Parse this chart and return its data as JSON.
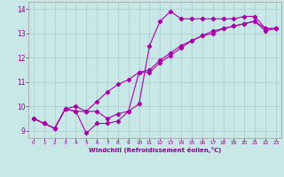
{
  "xlabel": "Windchill (Refroidissement éolien,°C)",
  "background_color": "#c8e8e8",
  "grid_color": "#b0d0d0",
  "line_color": "#aa00aa",
  "xlim": [
    -0.5,
    23.5
  ],
  "ylim": [
    8.7,
    14.3
  ],
  "xticks": [
    0,
    1,
    2,
    3,
    4,
    5,
    6,
    7,
    8,
    9,
    10,
    11,
    12,
    13,
    14,
    15,
    16,
    17,
    18,
    19,
    20,
    21,
    22,
    23
  ],
  "yticks": [
    9,
    10,
    11,
    12,
    13,
    14
  ],
  "line1_x": [
    0,
    1,
    2,
    3,
    4,
    5,
    6,
    7,
    8,
    9,
    10,
    11,
    12,
    13,
    14,
    15,
    16,
    17,
    18,
    19,
    20,
    21,
    22,
    23
  ],
  "line1_y": [
    9.5,
    9.3,
    9.1,
    9.9,
    9.8,
    8.9,
    9.3,
    9.3,
    9.4,
    9.8,
    10.1,
    12.5,
    13.5,
    13.9,
    13.6,
    13.6,
    13.6,
    13.6,
    13.6,
    13.6,
    13.7,
    13.7,
    13.2,
    13.2
  ],
  "line2_x": [
    0,
    1,
    2,
    3,
    4,
    5,
    6,
    7,
    8,
    9,
    10,
    11,
    12,
    13,
    14,
    15,
    16,
    17,
    18,
    19,
    20,
    21,
    22,
    23
  ],
  "line2_y": [
    9.5,
    9.3,
    9.1,
    9.9,
    10.0,
    9.8,
    10.2,
    10.6,
    10.9,
    11.1,
    11.4,
    11.5,
    11.9,
    12.2,
    12.5,
    12.7,
    12.9,
    13.1,
    13.2,
    13.3,
    13.4,
    13.5,
    13.2,
    13.2
  ],
  "line3_x": [
    0,
    1,
    2,
    3,
    4,
    5,
    6,
    7,
    8,
    9,
    10,
    11,
    12,
    13,
    14,
    15,
    16,
    17,
    18,
    19,
    20,
    21,
    22,
    23
  ],
  "line3_y": [
    9.5,
    9.3,
    9.1,
    9.9,
    9.8,
    9.8,
    9.8,
    9.5,
    9.7,
    9.8,
    11.4,
    11.4,
    11.8,
    12.1,
    12.4,
    12.7,
    12.9,
    13.0,
    13.2,
    13.3,
    13.4,
    13.5,
    13.1,
    13.2
  ]
}
